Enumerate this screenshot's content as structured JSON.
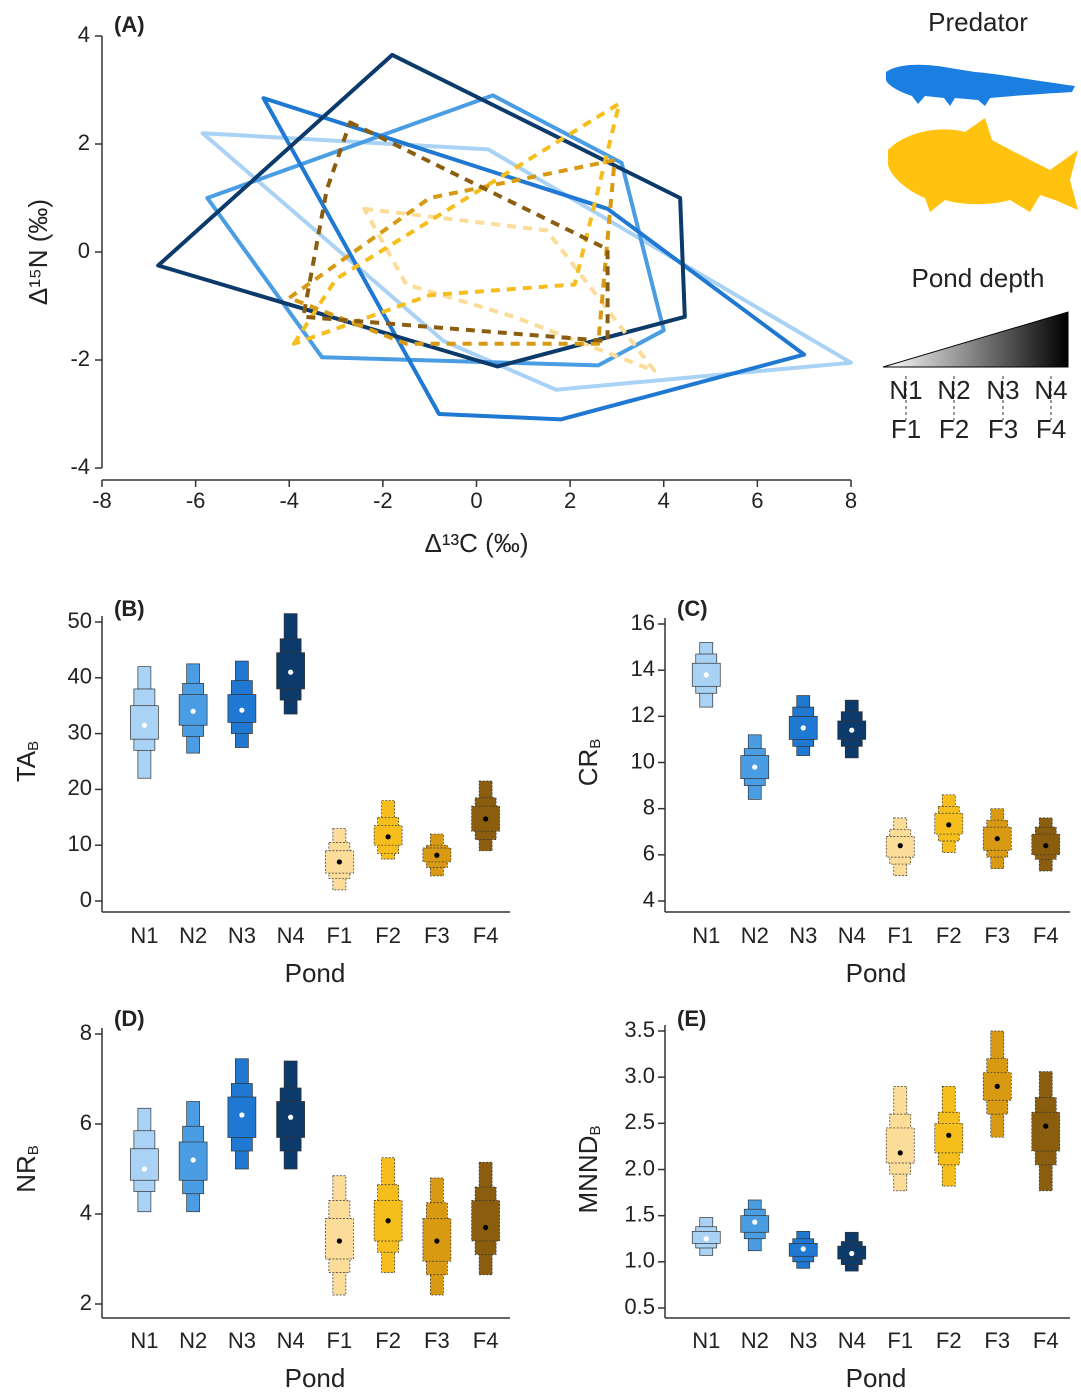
{
  "chart_data": [
    {
      "type": "polygon",
      "title": "(A)",
      "x_label": "Δ¹³C (‰)",
      "y_label": "Δ¹⁵N (‰)",
      "legend_title": "Predator",
      "depth_title": "Pond depth",
      "xlim": [
        -8,
        8
      ],
      "xticks": [
        -8,
        -6,
        -4,
        -2,
        0,
        2,
        4,
        6,
        8
      ],
      "ylim": [
        -4,
        4
      ],
      "yticks": [
        -4,
        -2,
        0,
        2,
        4
      ],
      "series": [
        {
          "name": "N1",
          "color": "#a9d2f5",
          "line_style": "solid",
          "x": [
            -5.85,
            0.25,
            8.0,
            1.7,
            -0.7
          ],
          "y": [
            2.2,
            1.9,
            -2.05,
            -2.55,
            -1.65
          ]
        },
        {
          "name": "N2",
          "color": "#4a9de3",
          "line_style": "solid",
          "x": [
            0.35,
            3.1,
            4.0,
            2.6,
            -3.3,
            -5.75
          ],
          "y": [
            2.9,
            1.65,
            -1.45,
            -2.1,
            -1.95,
            1.0
          ]
        },
        {
          "name": "N3",
          "color": "#1f78d1",
          "line_style": "solid",
          "x": [
            -4.55,
            2.8,
            7.0,
            1.8,
            -0.8
          ],
          "y": [
            2.85,
            0.8,
            -1.9,
            -3.1,
            -3.0
          ]
        },
        {
          "name": "N4",
          "color": "#0b3a6b",
          "line_style": "solid",
          "x": [
            -1.8,
            4.35,
            4.45,
            0.45,
            -6.8
          ],
          "y": [
            3.65,
            1.0,
            -1.2,
            -2.12,
            -0.25
          ]
        },
        {
          "name": "F1",
          "color": "#fbdc98",
          "line_style": "dashed",
          "x": [
            -2.4,
            1.5,
            3.8,
            0.8,
            -1.5
          ],
          "y": [
            0.8,
            0.4,
            -2.2,
            -1.2,
            -0.6
          ]
        },
        {
          "name": "F2",
          "color": "#f5be1c",
          "line_style": "dashed",
          "x": [
            -3.9,
            -3.0,
            3.05,
            2.1,
            -1.0
          ],
          "y": [
            -1.7,
            -0.5,
            2.75,
            -0.6,
            -0.8
          ]
        },
        {
          "name": "F3",
          "color": "#d89a12",
          "line_style": "dashed",
          "x": [
            -4.0,
            -1.0,
            2.95,
            2.6,
            -1.5
          ],
          "y": [
            -0.85,
            1.0,
            1.7,
            -1.7,
            -1.7
          ]
        },
        {
          "name": "F4",
          "color": "#8a5e0e",
          "line_style": "dashed",
          "x": [
            -2.7,
            2.8,
            2.8,
            -3.7,
            -3.2
          ],
          "y": [
            2.4,
            0.05,
            -1.65,
            -1.2,
            1.15
          ]
        }
      ]
    },
    {
      "type": "interval",
      "title": "(B)",
      "x_label": "Pond",
      "y_label": "TA",
      "y_label_sub": "B",
      "categories": [
        "N1",
        "N2",
        "N3",
        "N4",
        "F1",
        "F2",
        "F3",
        "F4"
      ],
      "colors": [
        "#a9d2f5",
        "#4a9de3",
        "#1f78d1",
        "#0b3a6b",
        "#fbdc98",
        "#f5be1c",
        "#d89a12",
        "#8a5e0e"
      ],
      "point_colors": [
        "#ffffff",
        "#ffffff",
        "#ffffff",
        "#ffffff",
        "#000000",
        "#000000",
        "#000000",
        "#000000"
      ],
      "ylim": [
        0,
        50
      ],
      "yticks": [
        0,
        10,
        20,
        30,
        40,
        50
      ],
      "mode": [
        31.5,
        34,
        34.2,
        41,
        7,
        11.5,
        8.2,
        14.7
      ],
      "ci95": [
        [
          22,
          42
        ],
        [
          26.5,
          42.5
        ],
        [
          27.5,
          43
        ],
        [
          33.5,
          51.5
        ],
        [
          2,
          13
        ],
        [
          7.5,
          18
        ],
        [
          4.5,
          12
        ],
        [
          9,
          21.5
        ]
      ],
      "ci75": [
        [
          27,
          38
        ],
        [
          29.5,
          39
        ],
        [
          30,
          39.5
        ],
        [
          36,
          47
        ],
        [
          4,
          10.5
        ],
        [
          8.5,
          15
        ],
        [
          6,
          10
        ],
        [
          11,
          18.5
        ]
      ],
      "ci50": [
        [
          29,
          35
        ],
        [
          31.5,
          37
        ],
        [
          32,
          37
        ],
        [
          38,
          44.5
        ],
        [
          5,
          9
        ],
        [
          10,
          13.5
        ],
        [
          7,
          9.5
        ],
        [
          12.5,
          17
        ]
      ]
    },
    {
      "type": "interval",
      "title": "(C)",
      "x_label": "Pond",
      "y_label": "CR",
      "y_label_sub": "B",
      "categories": [
        "N1",
        "N2",
        "N3",
        "N4",
        "F1",
        "F2",
        "F3",
        "F4"
      ],
      "colors": [
        "#a9d2f5",
        "#4a9de3",
        "#1f78d1",
        "#0b3a6b",
        "#fbdc98",
        "#f5be1c",
        "#d89a12",
        "#8a5e0e"
      ],
      "point_colors": [
        "#ffffff",
        "#ffffff",
        "#ffffff",
        "#ffffff",
        "#000000",
        "#000000",
        "#000000",
        "#000000"
      ],
      "ylim": [
        4,
        16
      ],
      "yticks": [
        4,
        6,
        8,
        10,
        12,
        14,
        16
      ],
      "mode": [
        13.8,
        9.8,
        11.5,
        11.4,
        6.4,
        7.3,
        6.7,
        6.4
      ],
      "ci95": [
        [
          12.4,
          15.2
        ],
        [
          8.4,
          11.2
        ],
        [
          10.3,
          12.9
        ],
        [
          10.2,
          12.7
        ],
        [
          5.1,
          7.6
        ],
        [
          6.1,
          8.6
        ],
        [
          5.4,
          8.0
        ],
        [
          5.3,
          7.6
        ]
      ],
      "ci75": [
        [
          13,
          14.7
        ],
        [
          9,
          10.6
        ],
        [
          10.7,
          12.4
        ],
        [
          10.7,
          12.2
        ],
        [
          5.6,
          7.1
        ],
        [
          6.6,
          8.1
        ],
        [
          5.9,
          7.5
        ],
        [
          5.8,
          7.2
        ]
      ],
      "ci50": [
        [
          13.3,
          14.3
        ],
        [
          9.3,
          10.3
        ],
        [
          11,
          12
        ],
        [
          11,
          11.8
        ],
        [
          5.9,
          6.8
        ],
        [
          6.9,
          7.8
        ],
        [
          6.2,
          7.2
        ],
        [
          6.0,
          6.9
        ]
      ]
    },
    {
      "type": "interval",
      "title": "(D)",
      "x_label": "Pond",
      "y_label": "NR",
      "y_label_sub": "B",
      "categories": [
        "N1",
        "N2",
        "N3",
        "N4",
        "F1",
        "F2",
        "F3",
        "F4"
      ],
      "colors": [
        "#a9d2f5",
        "#4a9de3",
        "#1f78d1",
        "#0b3a6b",
        "#fbdc98",
        "#f5be1c",
        "#d89a12",
        "#8a5e0e"
      ],
      "point_colors": [
        "#ffffff",
        "#ffffff",
        "#ffffff",
        "#ffffff",
        "#000000",
        "#000000",
        "#000000",
        "#000000"
      ],
      "ylim": [
        2,
        8
      ],
      "yticks": [
        2,
        4,
        6,
        8
      ],
      "mode": [
        5.0,
        5.2,
        6.2,
        6.15,
        3.4,
        3.85,
        3.4,
        3.7
      ],
      "ci95": [
        [
          4.05,
          6.35
        ],
        [
          4.05,
          6.5
        ],
        [
          5.0,
          7.45
        ],
        [
          5.0,
          7.4
        ],
        [
          2.2,
          4.85
        ],
        [
          2.7,
          5.25
        ],
        [
          2.2,
          4.8
        ],
        [
          2.65,
          5.15
        ]
      ],
      "ci75": [
        [
          4.5,
          5.85
        ],
        [
          4.45,
          5.95
        ],
        [
          5.4,
          6.9
        ],
        [
          5.4,
          6.8
        ],
        [
          2.7,
          4.3
        ],
        [
          3.15,
          4.65
        ],
        [
          2.65,
          4.25
        ],
        [
          3.1,
          4.6
        ]
      ],
      "ci50": [
        [
          4.75,
          5.45
        ],
        [
          4.75,
          5.6
        ],
        [
          5.7,
          6.6
        ],
        [
          5.7,
          6.5
        ],
        [
          3.0,
          3.9
        ],
        [
          3.4,
          4.3
        ],
        [
          2.95,
          3.9
        ],
        [
          3.4,
          4.3
        ]
      ]
    },
    {
      "type": "interval",
      "title": "(E)",
      "x_label": "Pond",
      "y_label": "MNND",
      "y_label_sub": "B",
      "categories": [
        "N1",
        "N2",
        "N3",
        "N4",
        "F1",
        "F2",
        "F3",
        "F4"
      ],
      "colors": [
        "#a9d2f5",
        "#4a9de3",
        "#1f78d1",
        "#0b3a6b",
        "#fbdc98",
        "#f5be1c",
        "#d89a12",
        "#8a5e0e"
      ],
      "point_colors": [
        "#ffffff",
        "#ffffff",
        "#ffffff",
        "#ffffff",
        "#000000",
        "#000000",
        "#000000",
        "#000000"
      ],
      "ylim": [
        0.5,
        3.5
      ],
      "yticks": [
        {
          "value": 0.5,
          "label": "0.5"
        },
        {
          "value": 1,
          "label": "1.0"
        },
        {
          "value": 1.5,
          "label": "1.5"
        },
        {
          "value": 2,
          "label": "2.0"
        },
        {
          "value": 2.5,
          "label": "2.5"
        },
        {
          "value": 3,
          "label": "3.0"
        },
        {
          "value": 3.5,
          "label": "3.5"
        }
      ],
      "mode": [
        1.25,
        1.43,
        1.14,
        1.09,
        2.18,
        2.37,
        2.9,
        2.47
      ],
      "ci95": [
        [
          1.07,
          1.48
        ],
        [
          1.12,
          1.67
        ],
        [
          0.93,
          1.33
        ],
        [
          0.9,
          1.32
        ],
        [
          1.77,
          2.9
        ],
        [
          1.82,
          2.9
        ],
        [
          2.35,
          3.5
        ],
        [
          1.77,
          3.06
        ]
      ],
      "ci75": [
        [
          1.15,
          1.38
        ],
        [
          1.25,
          1.57
        ],
        [
          1.0,
          1.25
        ],
        [
          0.97,
          1.22
        ],
        [
          1.95,
          2.6
        ],
        [
          2.05,
          2.62
        ],
        [
          2.6,
          3.2
        ],
        [
          2.05,
          2.78
        ]
      ],
      "ci50": [
        [
          1.2,
          1.33
        ],
        [
          1.32,
          1.5
        ],
        [
          1.06,
          1.2
        ],
        [
          1.03,
          1.17
        ],
        [
          2.07,
          2.45
        ],
        [
          2.18,
          2.5
        ],
        [
          2.75,
          3.05
        ],
        [
          2.2,
          2.62
        ]
      ]
    }
  ]
}
